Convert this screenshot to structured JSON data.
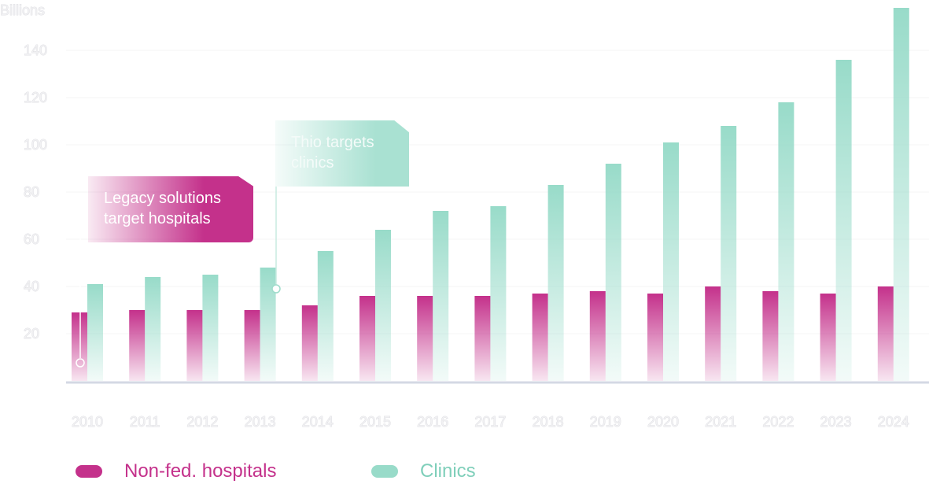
{
  "chart_data": {
    "type": "bar",
    "ylabel": "Billions",
    "ylim": [
      0,
      160
    ],
    "yticks": [
      20,
      40,
      60,
      80,
      100,
      120,
      140
    ],
    "categories": [
      "2010",
      "2011",
      "2012",
      "2013",
      "2014",
      "2015",
      "2016",
      "2017",
      "2018",
      "2019",
      "2020",
      "2021",
      "2022",
      "2023",
      "2024"
    ],
    "series": [
      {
        "name": "Non-fed. hospitals",
        "color": "#c4318b",
        "values": [
          29,
          30,
          30,
          30,
          32,
          36,
          36,
          36,
          37,
          38,
          37,
          40,
          38,
          37,
          40
        ]
      },
      {
        "name": "Clinics",
        "color": "#98dbc9",
        "values": [
          41,
          44,
          45,
          48,
          55,
          64,
          72,
          74,
          83,
          92,
          101,
          108,
          118,
          136,
          158
        ]
      }
    ],
    "annotations": [
      {
        "text": "Legacy solutions target hospitals",
        "category": "2010",
        "series": "Non-fed. hospitals"
      },
      {
        "text": "Thio targets clinics",
        "category": "2013",
        "series": "Clinics"
      }
    ]
  },
  "legend": {
    "hospitals_label": "Non-fed. hospitals",
    "clinics_label": "Clinics"
  }
}
